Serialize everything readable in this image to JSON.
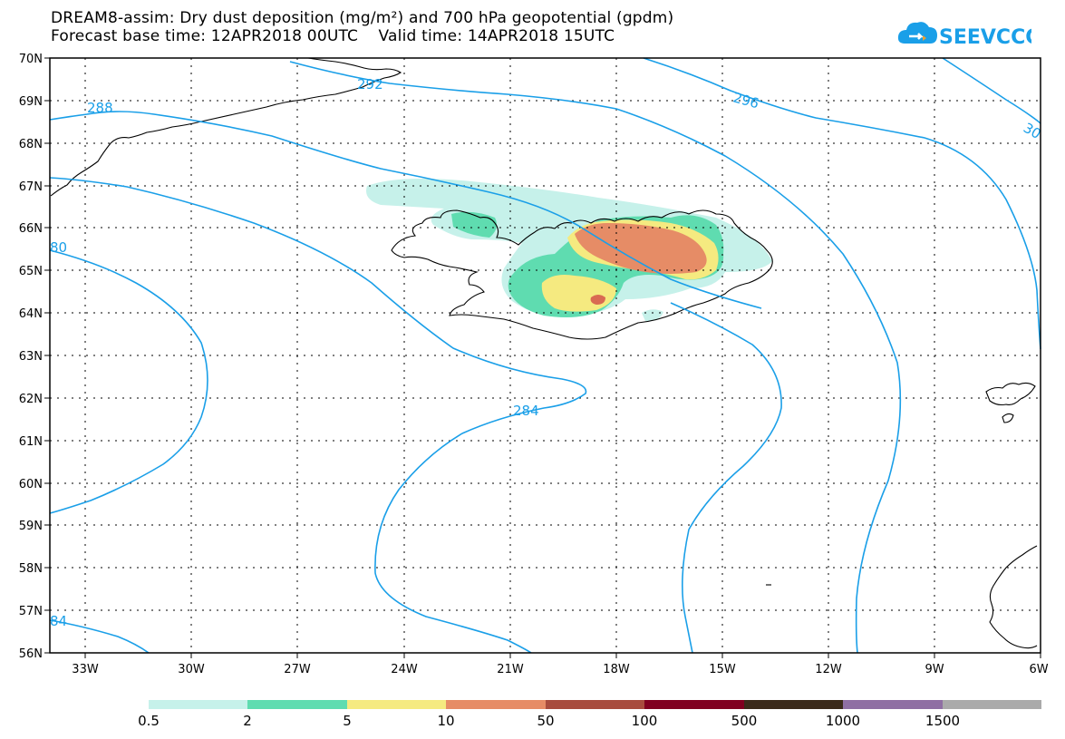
{
  "title": {
    "line1": "DREAM8-assim: Dry dust deposition (mg/m²) and 700 hPa geopotential (gpdm)",
    "line2": "Forecast base time: 12APR2018 00UTC    Valid time: 14APR2018 15UTC"
  },
  "logo": {
    "text": "SEEVCCC",
    "icon": "cloud-icon",
    "color": "#1a9fe8"
  },
  "map": {
    "lat_labels": [
      "70N",
      "69N",
      "68N",
      "67N",
      "66N",
      "65N",
      "64N",
      "63N",
      "62N",
      "61N",
      "60N",
      "59N",
      "58N",
      "57N",
      "56N"
    ],
    "lon_labels": [
      "33W",
      "30W",
      "27W",
      "24W",
      "21W",
      "18W",
      "15W",
      "12W",
      "9W",
      "6W"
    ],
    "contour_labels": [
      "288",
      "292",
      "296",
      "30",
      "80",
      "284",
      "84"
    ],
    "contour_color": "#1a9fe8",
    "dust_colors": {
      "c0": "#c6f1ea",
      "c1": "#5fdcb0",
      "c2": "#f5ea80",
      "c3": "#e68c66",
      "c4": "#d96a52"
    }
  },
  "colorbar": {
    "colors": [
      "#c6f1ea",
      "#5fdcb0",
      "#f5ea80",
      "#e68c66",
      "#a84c3e",
      "#800020",
      "#3b2a1a",
      "#8f6fa3",
      "#aaaaaa"
    ],
    "labels": [
      "0.5",
      "2",
      "5",
      "10",
      "50",
      "100",
      "500",
      "1000",
      "1500"
    ]
  }
}
